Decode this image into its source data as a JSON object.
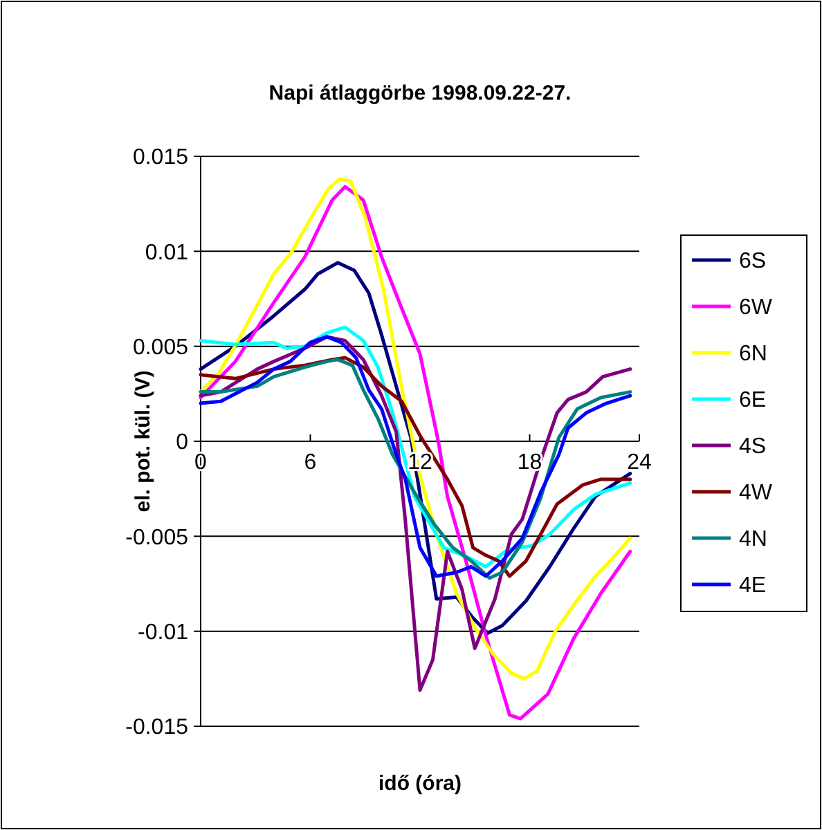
{
  "chart_data": {
    "type": "line",
    "title": "Napi átlaggörbe 1998.09.22-27.",
    "xlabel": "idő (óra)",
    "ylabel": "el. pot. kül. (V)",
    "xlim": [
      0,
      24
    ],
    "xticks": [
      0,
      6,
      12,
      18,
      24
    ],
    "ylim": [
      -0.015,
      0.015
    ],
    "yticks": [
      -0.015,
      -0.01,
      -0.005,
      0,
      0.005,
      0.01,
      0.015
    ],
    "grid": "y",
    "legend": "right",
    "marker": "none",
    "line_style": "solid",
    "series": [
      {
        "name": "6S",
        "color": "#000080",
        "x": [
          0,
          1.9,
          4,
          5.7,
          6.4,
          7.5,
          8.4,
          9.2,
          9.9,
          10.7,
          11.5,
          12.1,
          12.9,
          14,
          14.9,
          15.7,
          16.5,
          17.8,
          19.1,
          20.4,
          21.6,
          23.5
        ],
        "values": [
          0.0038,
          0.005,
          0.0066,
          0.008,
          0.0088,
          0.0094,
          0.009,
          0.0078,
          0.0056,
          0.0029,
          0.0002,
          -0.0034,
          -0.0083,
          -0.0082,
          -0.0093,
          -0.0101,
          -0.0097,
          -0.0084,
          -0.0066,
          -0.0046,
          -0.0029,
          -0.0017
        ]
      },
      {
        "name": "6W",
        "color": "#ff00ff",
        "x": [
          0,
          1.9,
          4,
          5.7,
          7.2,
          7.9,
          8.9,
          9.9,
          11,
          12,
          13,
          13.5,
          14.6,
          15.6,
          16.9,
          17.5,
          19,
          20.4,
          21.9,
          23.5
        ],
        "values": [
          0.0023,
          0.0042,
          0.0073,
          0.0097,
          0.0127,
          0.0134,
          0.0127,
          0.0097,
          0.007,
          0.0046,
          0,
          -0.0029,
          -0.0066,
          -0.0102,
          -0.0144,
          -0.0146,
          -0.0133,
          -0.0104,
          -0.008,
          -0.0058
        ]
      },
      {
        "name": "6N",
        "color": "#ffff00",
        "x": [
          0,
          1,
          2,
          3,
          4,
          5,
          6,
          7,
          7.6,
          8.2,
          9,
          10,
          11,
          12,
          13,
          14,
          15,
          16,
          17,
          17.7,
          18.4,
          19.4,
          20.5,
          21.6,
          22.5,
          23.5
        ],
        "values": [
          0.0026,
          0.0036,
          0.0052,
          0.007,
          0.0088,
          0.01,
          0.0117,
          0.0133,
          0.0138,
          0.0137,
          0.0118,
          0.008,
          0.0028,
          -0.0018,
          -0.0052,
          -0.008,
          -0.0098,
          -0.0112,
          -0.0122,
          -0.0125,
          -0.0121,
          -0.01,
          -0.0085,
          -0.0071,
          -0.0062,
          -0.0051
        ]
      },
      {
        "name": "6E",
        "color": "#00ffff",
        "x": [
          0,
          1.9,
          4,
          4.7,
          5.7,
          6.9,
          7.9,
          8.9,
          9.7,
          10.5,
          11.7,
          13.3,
          14.6,
          15.6,
          16.8,
          18.1,
          19.1,
          20.4,
          21.6,
          23.5
        ],
        "values": [
          0.0053,
          0.0051,
          0.0052,
          0.0049,
          0.005,
          0.0057,
          0.006,
          0.0053,
          0.0039,
          0.0015,
          -0.0029,
          -0.0056,
          -0.0061,
          -0.0066,
          -0.0057,
          -0.0055,
          -0.0049,
          -0.0036,
          -0.0028,
          -0.0022
        ]
      },
      {
        "name": "4S",
        "color": "#800080",
        "x": [
          0,
          1.1,
          3.1,
          4,
          5.7,
          6.9,
          7.9,
          8.9,
          9.9,
          10.7,
          11.2,
          12,
          12.7,
          13.5,
          14.3,
          15,
          16.1,
          17,
          17.6,
          18.6,
          19.5,
          20.1,
          21.1,
          22,
          23.5
        ],
        "values": [
          0.0024,
          0.0026,
          0.0038,
          0.0042,
          0.0049,
          0.0055,
          0.0053,
          0.0043,
          0.0024,
          0.0005,
          -0.0042,
          -0.0131,
          -0.0115,
          -0.0058,
          -0.0078,
          -0.0109,
          -0.0083,
          -0.0049,
          -0.0041,
          -0.001,
          0.0015,
          0.0022,
          0.0026,
          0.0034,
          0.0038
        ]
      },
      {
        "name": "4W",
        "color": "#800000",
        "x": [
          0,
          1.9,
          4,
          5.7,
          7.2,
          7.9,
          8.9,
          9.9,
          11,
          12,
          13.5,
          14.3,
          14.9,
          15.6,
          16.3,
          16.9,
          17.8,
          18.6,
          19.5,
          20.9,
          21.9,
          23.5
        ],
        "values": [
          0.0035,
          0.0033,
          0.0038,
          0.004,
          0.0043,
          0.0044,
          0.0039,
          0.0029,
          0.0021,
          0.0003,
          -0.002,
          -0.0034,
          -0.0056,
          -0.006,
          -0.0063,
          -0.0071,
          -0.0063,
          -0.0049,
          -0.0033,
          -0.0023,
          -0.002,
          -0.002
        ]
      },
      {
        "name": "4N",
        "color": "#008080",
        "x": [
          0,
          1.1,
          3.1,
          4,
          5.7,
          6.9,
          7.5,
          8.3,
          8.9,
          9.7,
          10.5,
          11.7,
          12.8,
          13.8,
          14.8,
          15.8,
          16.5,
          17.6,
          18.6,
          19.6,
          20.6,
          21.9,
          23.5
        ],
        "values": [
          0.0026,
          0.0026,
          0.0029,
          0.0034,
          0.0039,
          0.0042,
          0.0043,
          0.004,
          0.0027,
          0.0012,
          -0.0007,
          -0.0027,
          -0.0044,
          -0.0056,
          -0.0063,
          -0.0072,
          -0.0069,
          -0.0053,
          -0.003,
          0.0002,
          0.0017,
          0.0023,
          0.0026
        ]
      },
      {
        "name": "4E",
        "color": "#0000ff",
        "x": [
          0,
          1.1,
          3.1,
          4,
          4.9,
          6,
          6.9,
          7.7,
          8.5,
          9.2,
          9.9,
          10.7,
          11.2,
          12,
          12.9,
          14,
          14.8,
          15.6,
          16.5,
          17.6,
          18.6,
          19.6,
          20.1,
          21.1,
          22.2,
          23.5
        ],
        "values": [
          0.002,
          0.0021,
          0.0031,
          0.0038,
          0.0042,
          0.0052,
          0.0055,
          0.0052,
          0.0044,
          0.0027,
          0.0017,
          -0.0007,
          -0.002,
          -0.0056,
          -0.0071,
          -0.0069,
          -0.0066,
          -0.0071,
          -0.0063,
          -0.0051,
          -0.0027,
          -0.0007,
          0.0007,
          0.0015,
          0.002,
          0.0024
        ]
      }
    ]
  }
}
